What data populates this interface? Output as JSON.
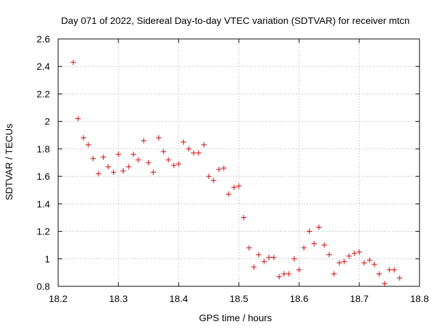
{
  "chart_data": {
    "type": "scatter",
    "title": "Day 071 of 2022, Sidereal Day-to-day VTEC variation (SDTVAR) for receiver mtcn",
    "xlabel": "GPS time / hours",
    "ylabel": "SDTVAR / TECUs",
    "xlim": [
      18.2,
      18.8
    ],
    "ylim": [
      0.8,
      2.6
    ],
    "x_ticks": [
      "18.2",
      "18.3",
      "18.4",
      "18.5",
      "18.6",
      "18.7",
      "18.8"
    ],
    "y_ticks": [
      "0.8",
      "1",
      "1.2",
      "1.4",
      "1.6",
      "1.8",
      "2",
      "2.2",
      "2.4",
      "2.6"
    ],
    "grid": true,
    "marker": "+",
    "marker_color": "#cc0000",
    "series": [
      {
        "name": "SDTVAR",
        "x": [
          18.225,
          18.233,
          18.242,
          18.25,
          18.258,
          18.267,
          18.275,
          18.283,
          18.292,
          18.3,
          18.308,
          18.317,
          18.325,
          18.333,
          18.342,
          18.35,
          18.358,
          18.367,
          18.375,
          18.383,
          18.392,
          18.4,
          18.408,
          18.417,
          18.425,
          18.433,
          18.442,
          18.45,
          18.458,
          18.467,
          18.475,
          18.483,
          18.492,
          18.5,
          18.508,
          18.517,
          18.525,
          18.533,
          18.542,
          18.55,
          18.558,
          18.567,
          18.575,
          18.583,
          18.592,
          18.6,
          18.608,
          18.617,
          18.625,
          18.633,
          18.642,
          18.65,
          18.658,
          18.667,
          18.675,
          18.683,
          18.692,
          18.7,
          18.708,
          18.717,
          18.725,
          18.733,
          18.742,
          18.75,
          18.758,
          18.767
        ],
        "y": [
          2.43,
          2.02,
          1.88,
          1.83,
          1.73,
          1.62,
          1.74,
          1.67,
          1.63,
          1.76,
          1.64,
          1.67,
          1.76,
          1.72,
          1.86,
          1.7,
          1.63,
          1.88,
          1.78,
          1.72,
          1.68,
          1.69,
          1.85,
          1.8,
          1.77,
          1.77,
          1.83,
          1.6,
          1.57,
          1.65,
          1.66,
          1.47,
          1.52,
          1.53,
          1.3,
          1.08,
          0.94,
          1.03,
          0.98,
          1.01,
          1.01,
          0.87,
          0.89,
          0.89,
          1.0,
          0.92,
          1.08,
          1.2,
          1.11,
          1.23,
          1.1,
          1.03,
          0.89,
          0.97,
          0.98,
          1.02,
          1.04,
          1.05,
          0.97,
          0.99,
          0.96,
          0.89,
          0.82,
          0.92,
          0.92,
          0.86
        ]
      }
    ]
  }
}
